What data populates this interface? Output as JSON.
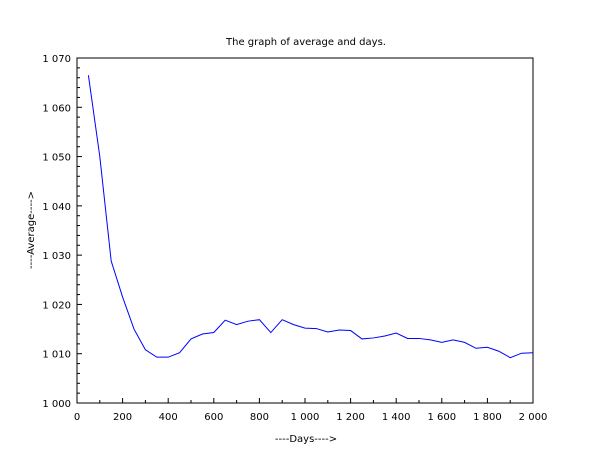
{
  "chart_data": {
    "type": "line",
    "title": "The graph of average and days.",
    "xlabel": "----Days---->",
    "ylabel": "----Average---->",
    "xlim": [
      0,
      2000
    ],
    "ylim": [
      1000,
      1070
    ],
    "grid": false,
    "x_ticks": [
      0,
      200,
      400,
      600,
      800,
      1000,
      1200,
      1400,
      1600,
      1800,
      2000
    ],
    "x_tick_labels": [
      "0",
      "200",
      "400",
      "600",
      "800",
      "1 000",
      "1 200",
      "1 400",
      "1 600",
      "1 800",
      "2 000"
    ],
    "y_ticks": [
      1000,
      1010,
      1020,
      1030,
      1040,
      1050,
      1060,
      1070
    ],
    "y_tick_labels": [
      "1 000",
      "1 010",
      "1 020",
      "1 030",
      "1 040",
      "1 050",
      "1 060",
      "1 070"
    ],
    "series": [
      {
        "color": "#0000ff",
        "x": [
          50,
          100,
          150,
          200,
          250,
          300,
          350,
          400,
          450,
          500,
          550,
          600,
          650,
          700,
          750,
          800,
          850,
          900,
          950,
          1000,
          1050,
          1100,
          1150,
          1200,
          1250,
          1300,
          1350,
          1400,
          1450,
          1500,
          1550,
          1600,
          1650,
          1700,
          1750,
          1800,
          1850,
          1900,
          1950,
          2000
        ],
        "y": [
          1066.5,
          1050.0,
          1028.8,
          1021.5,
          1015.0,
          1010.8,
          1009.3,
          1009.3,
          1010.2,
          1013.0,
          1014.0,
          1014.3,
          1016.8,
          1015.9,
          1016.6,
          1016.9,
          1014.3,
          1016.9,
          1015.9,
          1015.2,
          1015.1,
          1014.4,
          1014.8,
          1014.7,
          1013.0,
          1013.2,
          1013.6,
          1014.2,
          1013.1,
          1013.1,
          1012.8,
          1012.3,
          1012.8,
          1012.3,
          1011.1,
          1011.3,
          1010.5,
          1009.2,
          1010.1,
          1010.2
        ]
      }
    ]
  }
}
